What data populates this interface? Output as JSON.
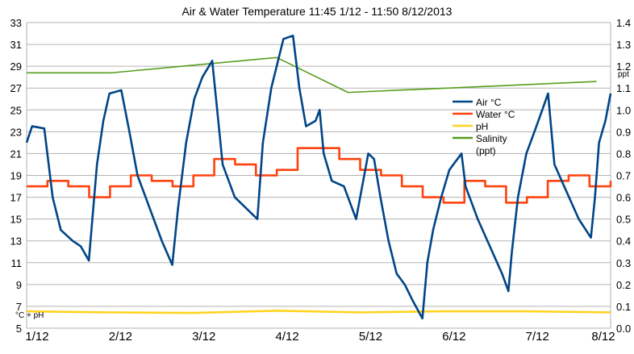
{
  "chart_data": {
    "type": "line",
    "title": "Air & Water Temperature 11:45 1/12 - 11:50 8/12/2013",
    "xlabel": "",
    "ylabel": "°C + pH",
    "y2label": "ppt",
    "x_range": [
      "1/12 11:45",
      "8/12 11:50"
    ],
    "x_tick_labels": [
      "1/12",
      "2/12",
      "3/12",
      "4/12",
      "5/12",
      "6/12",
      "7/12",
      "8/12"
    ],
    "ylim": [
      5,
      33
    ],
    "y_ticks": [
      5,
      7,
      9,
      11,
      13,
      15,
      17,
      19,
      21,
      23,
      25,
      27,
      29,
      31,
      33
    ],
    "y2lim": [
      0,
      1.4
    ],
    "y2_ticks": [
      "0.0",
      "0.1",
      "0.2",
      "0.3",
      "0.4",
      "0.5",
      "0.6",
      "0.7",
      "0.8",
      "0.9",
      "1.0",
      "1.1",
      "1.2",
      "1.3",
      "1.4"
    ],
    "grid": true,
    "legend_position": "right",
    "series": [
      {
        "name": "Air °C",
        "axis": "left",
        "color": "#004586",
        "x": [
          "1/12 11:45",
          "1/12 13:20",
          "1/12 16:50",
          "1/12 19:15",
          "1/12 21:35",
          "2/12 01:00",
          "2/12 03:20",
          "2/12 05:40",
          "2/12 08:00",
          "2/12 09:50",
          "2/12 11:35",
          "2/12 15:00",
          "2/12 17:20",
          "2/12 19:40",
          "2/12 22:00",
          "3/12 00:20",
          "3/12 02:40",
          "3/12 05:40",
          "3/12 07:20",
          "3/12 09:40",
          "3/12 12:00",
          "3/12 14:20",
          "3/12 17:10",
          "3/12 18:55",
          "3/12 20:10",
          "3/12 23:40",
          "4/12 06:10",
          "4/12 07:45",
          "4/12 10:10",
          "4/12 13:40",
          "4/12 16:25",
          "4/12 18:15",
          "4/12 20:10",
          "4/12 22:55",
          "5/12 00:05",
          "5/12 01:15",
          "5/12 03:35",
          "5/12 07:05",
          "5/12 10:35",
          "5/12 11:45",
          "5/12 14:05",
          "5/12 15:45",
          "5/12 17:35",
          "5/12 19:55",
          "5/12 22:15",
          "6/12 00:35",
          "6/12 02:55",
          "6/12 05:40",
          "6/12 07:05",
          "6/12 08:45",
          "6/12 11:05",
          "6/12 13:25",
          "6/12 16:55",
          "6/12 18:05",
          "6/12 21:35",
          "7/12 01:05",
          "7/12 04:35",
          "7/12 06:25",
          "7/12 07:25",
          "7/12 09:10",
          "7/12 11:35",
          "7/12 13:55",
          "7/12 16:10",
          "7/12 17:50",
          "7/12 19:40",
          "7/12 23:10",
          "8/12 02:40",
          "8/12 06:10",
          "8/12 07:20",
          "8/12 08:30",
          "8/12 10:20",
          "8/12 11:50"
        ],
        "values": [
          22,
          23.5,
          23.3,
          17,
          14,
          13,
          12.5,
          11.2,
          20,
          24,
          26.5,
          26.8,
          23,
          19,
          17,
          15,
          13,
          10.8,
          16,
          22,
          26,
          28,
          29.5,
          24,
          20,
          17,
          15,
          22,
          27,
          31.5,
          31.8,
          27,
          23.5,
          24,
          25,
          21,
          18.5,
          18,
          15,
          17,
          21,
          20.5,
          17,
          13,
          10,
          9,
          7.5,
          5.9,
          11,
          14,
          17,
          19.5,
          21,
          18,
          15,
          12.5,
          10,
          8.4,
          12,
          17,
          21,
          23,
          25,
          26.5,
          20,
          17.5,
          15,
          13.3,
          17,
          22,
          24,
          26.5
        ]
      },
      {
        "name": "Water °C",
        "axis": "left",
        "color": "#ff420e",
        "interpolation": "step",
        "x": [
          "1/12 11:45",
          "1/12 17:45",
          "1/12 23:45",
          "2/12 05:45",
          "2/12 11:45",
          "2/12 17:45",
          "2/12 23:45",
          "3/12 05:45",
          "3/12 11:45",
          "3/12 17:45",
          "3/12 23:45",
          "4/12 05:45",
          "4/12 11:45",
          "4/12 17:45",
          "4/12 23:45",
          "5/12 05:45",
          "5/12 11:45",
          "5/12 17:45",
          "5/12 23:45",
          "6/12 05:45",
          "6/12 11:45",
          "6/12 17:45",
          "6/12 23:45",
          "7/12 05:45",
          "7/12 11:45",
          "7/12 17:45",
          "7/12 23:45",
          "8/12 05:45",
          "8/12 11:50"
        ],
        "values": [
          18,
          18.5,
          18,
          17,
          18,
          19,
          18.5,
          18,
          19,
          20.5,
          20,
          19,
          19.5,
          21.5,
          21.5,
          20.5,
          19.5,
          19,
          18,
          17,
          16.5,
          18.5,
          18,
          16.5,
          17,
          18.5,
          19,
          18,
          18.5
        ]
      },
      {
        "name": "pH",
        "axis": "left",
        "color": "#ffd320",
        "x": [
          "1/12 11:45",
          "2/12 11:45",
          "3/12 11:45",
          "4/12 11:45",
          "5/12 11:45",
          "6/12 11:45",
          "7/12 11:45",
          "8/12 11:50"
        ],
        "values": [
          6.55,
          6.45,
          6.4,
          6.6,
          6.45,
          6.55,
          6.55,
          6.45
        ]
      },
      {
        "name": "Salinity (ppt)",
        "axis": "right",
        "color": "#579d1c",
        "x": [
          "1/12 11:45",
          "2/12 12:15",
          "4/12 11:45",
          "5/12 08:15",
          "8/12 07:45"
        ],
        "values": [
          1.17,
          1.17,
          1.24,
          1.08,
          1.13
        ]
      }
    ]
  }
}
